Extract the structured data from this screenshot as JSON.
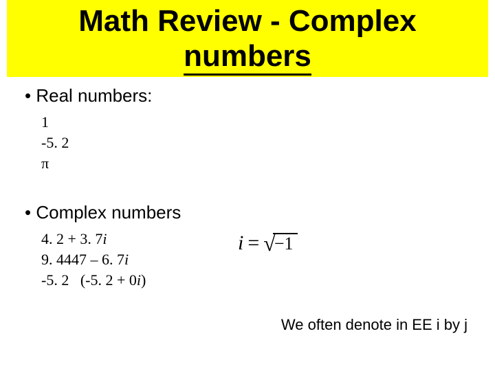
{
  "title": {
    "line1": "Math Review - Complex",
    "line2": "numbers",
    "banner_bg": "#ffff00",
    "text_color": "#000000",
    "fontsize": 44
  },
  "section1": {
    "bullet": "•  Real numbers:",
    "examples": {
      "r1": "1",
      "r2": "-5. 2",
      "r3": "π"
    }
  },
  "section2": {
    "bullet": "•  Complex numbers",
    "examples": {
      "r1a": "4. 2 + 3. 7",
      "r1b": "i",
      "r2a": "9. 4447 – 6. 7",
      "r2b": "i",
      "r3a": "-5. 2   (-5. 2 + 0",
      "r3b": "i",
      "r3c": ")"
    },
    "formula": {
      "lhs": "i",
      "eq": "=",
      "radical": "√",
      "radicand": "−1"
    }
  },
  "footer": "We often denote in EE i by j",
  "colors": {
    "page_bg": "#ffffff",
    "text": "#000000"
  }
}
